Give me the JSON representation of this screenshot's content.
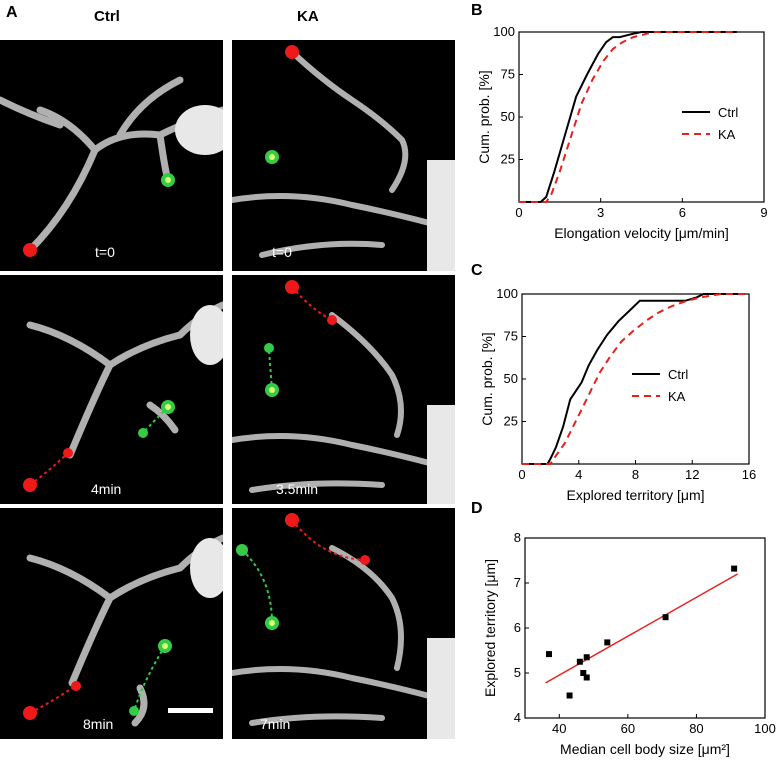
{
  "panel_letters": {
    "a": "A",
    "b": "B",
    "c": "C",
    "d": "D"
  },
  "columns": {
    "left": "Ctrl",
    "right": "KA"
  },
  "image_grid": {
    "ctrl_labels": [
      "t=0",
      "4min",
      "8min"
    ],
    "ka_labels": [
      "t=0",
      "3.5min",
      "7min"
    ]
  },
  "colors": {
    "ctrl": "#000000",
    "ka": "#e8201c",
    "marker_red": "#ee1a1a",
    "marker_green": "#33cc44",
    "fit_line": "#e82020"
  },
  "chart_data": [
    {
      "id": "B",
      "type": "line",
      "xlabel": "Elongation velocity [μm/min]",
      "ylabel": "Cum. prob. [%]",
      "xlim": [
        0,
        9
      ],
      "ylim": [
        0,
        100
      ],
      "xticks": [
        "0",
        "3",
        "6",
        "9"
      ],
      "yticks": [
        "25",
        "50",
        "75",
        "100"
      ],
      "legend_position": "right",
      "series": [
        {
          "name": "Ctrl",
          "style": "solid",
          "x": [
            0,
            0.8,
            1.0,
            1.3,
            1.7,
            2.1,
            2.5,
            2.9,
            3.2,
            3.45,
            3.7,
            4.2,
            4.5,
            5.0,
            8.0
          ],
          "y": [
            0,
            0,
            3,
            18,
            40,
            62,
            75,
            87,
            94,
            97,
            97,
            99,
            100,
            100,
            100
          ]
        },
        {
          "name": "KA",
          "style": "dashed",
          "x": [
            0,
            1.0,
            1.2,
            1.5,
            1.9,
            2.3,
            2.7,
            3.1,
            3.45,
            3.8,
            4.2,
            4.7,
            5.0,
            6.0,
            8.0
          ],
          "y": [
            0,
            0,
            5,
            18,
            38,
            58,
            72,
            83,
            90,
            94,
            97,
            99,
            100,
            100,
            100
          ]
        }
      ]
    },
    {
      "id": "C",
      "type": "line",
      "xlabel": "Explored territory [μm]",
      "ylabel": "Cum. prob. [%]",
      "xlim": [
        0,
        16
      ],
      "ylim": [
        0,
        100
      ],
      "xticks": [
        "0",
        "4",
        "8",
        "12",
        "16"
      ],
      "yticks": [
        "25",
        "50",
        "75",
        "100"
      ],
      "legend_position": "right",
      "series": [
        {
          "name": "Ctrl",
          "style": "solid",
          "x": [
            0,
            1.8,
            2.0,
            2.4,
            2.9,
            3.4,
            4.2,
            4.7,
            5.3,
            6.0,
            6.8,
            7.8,
            8.3,
            9.5,
            11.5,
            12.3,
            12.8,
            15.7
          ],
          "y": [
            0,
            0,
            3,
            10,
            22,
            38,
            48,
            58,
            67,
            76,
            84,
            92,
            96,
            96,
            96,
            98,
            100,
            100
          ]
        },
        {
          "name": "KA",
          "style": "dashed",
          "x": [
            0,
            2.0,
            2.4,
            3.0,
            3.6,
            4.2,
            4.9,
            5.5,
            6.2,
            7.0,
            7.8,
            8.7,
            9.6,
            10.6,
            11.6,
            12.6,
            14.0,
            15.7
          ],
          "y": [
            0,
            0,
            5,
            12,
            22,
            32,
            44,
            54,
            63,
            72,
            78,
            84,
            89,
            93,
            96,
            98,
            100,
            100
          ]
        }
      ]
    },
    {
      "id": "D",
      "type": "scatter",
      "xlabel": "Median cell body size [μm²]",
      "ylabel": "Explored territory [μm]",
      "xlim": [
        30,
        100
      ],
      "ylim": [
        4,
        8
      ],
      "xticks": [
        "40",
        "60",
        "80",
        "100"
      ],
      "yticks": [
        "4",
        "5",
        "6",
        "7",
        "8"
      ],
      "points": [
        [
          37,
          5.42
        ],
        [
          43,
          4.5
        ],
        [
          46,
          5.25
        ],
        [
          47,
          5.0
        ],
        [
          48,
          5.35
        ],
        [
          48,
          4.9
        ],
        [
          54,
          5.68
        ],
        [
          71,
          6.24
        ],
        [
          91,
          7.32
        ]
      ],
      "fit": {
        "x": [
          36,
          92
        ],
        "y": [
          4.78,
          7.2
        ]
      }
    }
  ]
}
